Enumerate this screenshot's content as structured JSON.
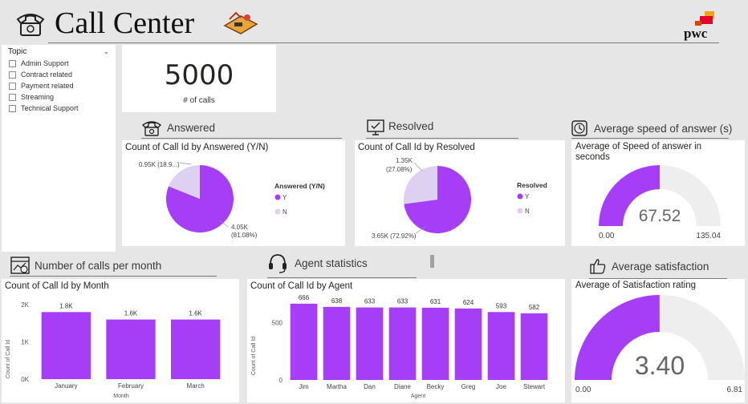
{
  "header": {
    "title": "Call Center",
    "logo_text": "pwc"
  },
  "slicer": {
    "title": "Topic",
    "items": [
      "Admin Support",
      "Contract related",
      "Payment related",
      "Streaming",
      "Technical Support"
    ]
  },
  "kpi": {
    "value": "5000",
    "label": "# of calls"
  },
  "sections": {
    "answered": "Answered",
    "resolved": "Resolved",
    "speed": "Average speed of answer (s)",
    "per_month": "Number of calls per month",
    "agent": "Agent statistics",
    "satisfaction": "Average satisfaction"
  },
  "colors": {
    "accent": "#a53ef6",
    "light": "#ddd0f0",
    "gauge_bg": "#efeeee"
  },
  "answered_chart": {
    "title": "Count of Call Id by Answered (Y/N)",
    "legend_title": "Answered (Y/N)",
    "legend": [
      "Y",
      "N"
    ],
    "label_y": "4.05K",
    "label_y_pct": "(81.08%)",
    "label_n": "0.95K (18.9...)"
  },
  "resolved_chart": {
    "title": "Count of Call Id by Resolved",
    "legend_title": "Resolved",
    "legend": [
      "Y",
      "N"
    ],
    "label_y": "3.65K (72.92%)",
    "label_n": "1.35K",
    "label_n_pct": "(27.08%)"
  },
  "speed_gauge": {
    "title_line1": "Average of Speed of answer in",
    "title_line2": "seconds",
    "value": "67.52",
    "min": "0.00",
    "max": "135.04"
  },
  "satisfaction_gauge": {
    "title": "Average of Satisfaction rating",
    "value": "3.40",
    "min": "0.00",
    "max": "6.81"
  },
  "chart_data": [
    {
      "type": "pie",
      "title": "Count of Call Id by Answered (Y/N)",
      "categories": [
        "Y",
        "N"
      ],
      "values": [
        4054,
        946
      ],
      "legend_title": "Answered (Y/N)"
    },
    {
      "type": "pie",
      "title": "Count of Call Id by Resolved",
      "categories": [
        "Y",
        "N"
      ],
      "values": [
        3646,
        1354
      ],
      "legend_title": "Resolved"
    },
    {
      "type": "bar",
      "title": "Count of Call Id by Month",
      "categories": [
        "January",
        "February",
        "March"
      ],
      "values": [
        1800,
        1600,
        1600
      ],
      "data_labels": [
        "1.8K",
        "1.6K",
        "1.6K"
      ],
      "xlabel": "Month",
      "ylabel": "Count of Call Id",
      "yticks": [
        "0K",
        "1K",
        "2K"
      ],
      "ylim": [
        0,
        2000
      ]
    },
    {
      "type": "bar",
      "title": "Count of Call Id by Agent",
      "categories": [
        "Jim",
        "Martha",
        "Dan",
        "Diane",
        "Becky",
        "Greg",
        "Joe",
        "Stewart"
      ],
      "values": [
        666,
        638,
        633,
        633,
        631,
        624,
        593,
        582
      ],
      "xlabel": "Agent",
      "ylabel": "Count of Call Id",
      "yticks": [
        "0",
        "500"
      ],
      "ylim": [
        0,
        700
      ]
    }
  ]
}
